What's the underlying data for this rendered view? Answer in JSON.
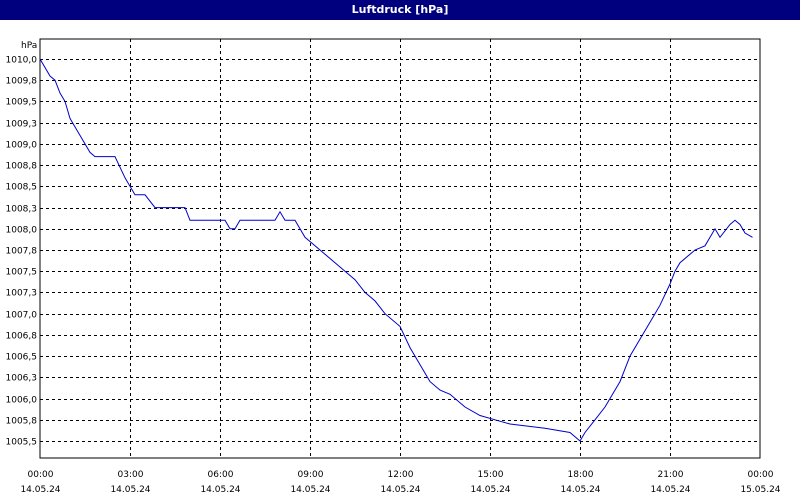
{
  "window": {
    "title": "Luftdruck [hPa]"
  },
  "chart_data": {
    "type": "line",
    "title": "Luftdruck [hPa]",
    "ylabel": "hPa",
    "xlabel": "",
    "ylim": [
      1005.4,
      1010.2
    ],
    "grid": true,
    "line_color": "#0000cc",
    "y_ticks": [
      {
        "value": 1010.0,
        "label": "1010,0"
      },
      {
        "value": 1009.75,
        "label": "1009,8"
      },
      {
        "value": 1009.5,
        "label": "1009,5"
      },
      {
        "value": 1009.25,
        "label": "1009,3"
      },
      {
        "value": 1009.0,
        "label": "1009,0"
      },
      {
        "value": 1008.75,
        "label": "1008,8"
      },
      {
        "value": 1008.5,
        "label": "1008,5"
      },
      {
        "value": 1008.25,
        "label": "1008,3"
      },
      {
        "value": 1008.0,
        "label": "1008,0"
      },
      {
        "value": 1007.75,
        "label": "1007,8"
      },
      {
        "value": 1007.5,
        "label": "1007,5"
      },
      {
        "value": 1007.25,
        "label": "1007,3"
      },
      {
        "value": 1007.0,
        "label": "1007,0"
      },
      {
        "value": 1006.75,
        "label": "1006,8"
      },
      {
        "value": 1006.5,
        "label": "1006,5"
      },
      {
        "value": 1006.25,
        "label": "1006,3"
      },
      {
        "value": 1006.0,
        "label": "1006,0"
      },
      {
        "value": 1005.75,
        "label": "1005,8"
      },
      {
        "value": 1005.5,
        "label": "1005,5"
      }
    ],
    "x_ticks": [
      {
        "value": 0,
        "time": "00:00",
        "date": "14.05.24"
      },
      {
        "value": 180,
        "time": "03:00",
        "date": "14.05.24"
      },
      {
        "value": 360,
        "time": "06:00",
        "date": "14.05.24"
      },
      {
        "value": 540,
        "time": "09:00",
        "date": "14.05.24"
      },
      {
        "value": 720,
        "time": "12:00",
        "date": "14.05.24"
      },
      {
        "value": 900,
        "time": "15:00",
        "date": "14.05.24"
      },
      {
        "value": 1080,
        "time": "18:00",
        "date": "14.05.24"
      },
      {
        "value": 1260,
        "time": "21:00",
        "date": "14.05.24"
      },
      {
        "value": 1440,
        "time": "00:00",
        "date": "15.05.24"
      }
    ],
    "x_unit": "minutes",
    "xlim": [
      0,
      1440
    ],
    "series": [
      {
        "points": [
          [
            0,
            1010.0
          ],
          [
            20,
            1009.8
          ],
          [
            30,
            1009.75
          ],
          [
            40,
            1009.6
          ],
          [
            50,
            1009.5
          ],
          [
            60,
            1009.3
          ],
          [
            80,
            1009.1
          ],
          [
            100,
            1008.9
          ],
          [
            110,
            1008.85
          ],
          [
            150,
            1008.85
          ],
          [
            170,
            1008.6
          ],
          [
            190,
            1008.4
          ],
          [
            210,
            1008.4
          ],
          [
            230,
            1008.25
          ],
          [
            290,
            1008.25
          ],
          [
            300,
            1008.1
          ],
          [
            370,
            1008.1
          ],
          [
            380,
            1008.0
          ],
          [
            390,
            1008.0
          ],
          [
            400,
            1008.1
          ],
          [
            470,
            1008.1
          ],
          [
            480,
            1008.2
          ],
          [
            490,
            1008.1
          ],
          [
            510,
            1008.1
          ],
          [
            530,
            1007.9
          ],
          [
            550,
            1007.8
          ],
          [
            570,
            1007.7
          ],
          [
            590,
            1007.6
          ],
          [
            610,
            1007.5
          ],
          [
            630,
            1007.4
          ],
          [
            650,
            1007.25
          ],
          [
            670,
            1007.15
          ],
          [
            690,
            1007.0
          ],
          [
            720,
            1006.85
          ],
          [
            740,
            1006.6
          ],
          [
            760,
            1006.4
          ],
          [
            780,
            1006.2
          ],
          [
            800,
            1006.1
          ],
          [
            820,
            1006.05
          ],
          [
            850,
            1005.9
          ],
          [
            880,
            1005.8
          ],
          [
            910,
            1005.75
          ],
          [
            940,
            1005.7
          ],
          [
            1010,
            1005.65
          ],
          [
            1060,
            1005.6
          ],
          [
            1080,
            1005.5
          ],
          [
            1090,
            1005.6
          ],
          [
            1110,
            1005.75
          ],
          [
            1130,
            1005.9
          ],
          [
            1160,
            1006.2
          ],
          [
            1180,
            1006.5
          ],
          [
            1200,
            1006.7
          ],
          [
            1220,
            1006.9
          ],
          [
            1240,
            1007.1
          ],
          [
            1260,
            1007.35
          ],
          [
            1270,
            1007.5
          ],
          [
            1280,
            1007.6
          ],
          [
            1300,
            1007.7
          ],
          [
            1310,
            1007.75
          ],
          [
            1330,
            1007.8
          ],
          [
            1350,
            1008.0
          ],
          [
            1360,
            1007.9
          ],
          [
            1380,
            1008.05
          ],
          [
            1390,
            1008.1
          ],
          [
            1400,
            1008.05
          ],
          [
            1410,
            1007.95
          ],
          [
            1425,
            1007.9
          ]
        ]
      }
    ]
  }
}
